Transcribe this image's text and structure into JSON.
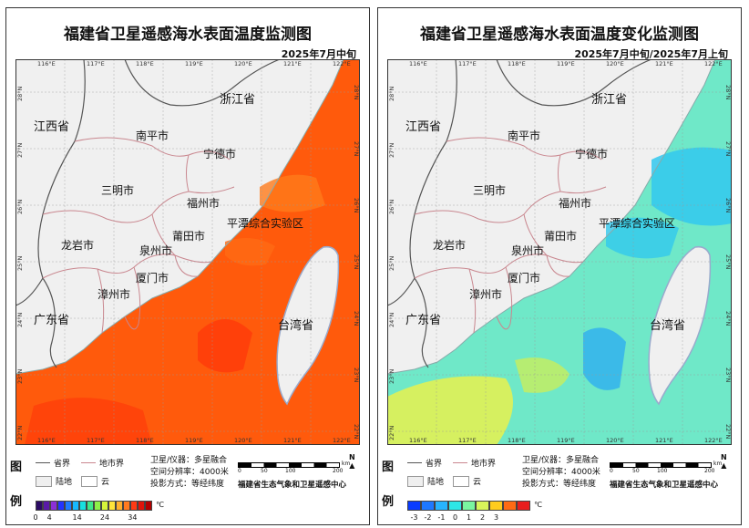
{
  "panels": [
    {
      "title": "福建省卫星遥感海水表面温度监测图",
      "date": "2025年7月中旬",
      "legend": {
        "legend_label_top": "图",
        "legend_label_bottom": "例",
        "province_boundary": "省界",
        "city_boundary": "地市界",
        "land": "陆地",
        "cloud": "云",
        "satellite": "卫星/仪器：多星融合",
        "resolution": "空间分辨率：4000米",
        "projection": "投影方式：等经纬度",
        "agency": "福建省生态气象和卫星遥感中心",
        "scale_unit": "km",
        "scale_ticks": [
          "0",
          "50",
          "100",
          "200"
        ],
        "north": "N",
        "colorbar_unit": "℃",
        "colorbar_labels": [
          "0",
          "4",
          "14",
          "24",
          "34"
        ],
        "colorbar_colors": [
          "#2b0a64",
          "#5a1aa8",
          "#8c2fd6",
          "#2233ff",
          "#1e7bff",
          "#16b8ff",
          "#17e0e0",
          "#3ee88a",
          "#8df048",
          "#d6f53a",
          "#ffe43a",
          "#ffb02e",
          "#ff7a1f",
          "#ff3a14",
          "#e0140a",
          "#b40000"
        ]
      }
    },
    {
      "title": "福建省卫星遥感海水表面温度变化监测图",
      "date": "2025年7月中旬/2025年7月上旬",
      "legend": {
        "legend_label_top": "图",
        "legend_label_bottom": "例",
        "province_boundary": "省界",
        "city_boundary": "地市界",
        "land": "陆地",
        "cloud": "云",
        "satellite": "卫星/仪器：多星融合",
        "resolution": "空间分辨率：4000米",
        "projection": "投影方式：等经纬度",
        "agency": "福建省生态气象和卫星遥感中心",
        "scale_unit": "km",
        "scale_ticks": [
          "0",
          "50",
          "100",
          "200"
        ],
        "north": "N",
        "colorbar_unit": "℃",
        "colorbar_labels": [
          "-3",
          "-2",
          "-1",
          "0",
          "1",
          "2",
          "3"
        ],
        "colorbar_colors": [
          "#0a3cff",
          "#1e78ff",
          "#27b4ff",
          "#2ee6e6",
          "#7af5a0",
          "#d8f55a",
          "#ffcc1e",
          "#ff6a14",
          "#e81e1e"
        ]
      }
    }
  ],
  "map": {
    "lon_ticks": [
      "116°E",
      "117°E",
      "118°E",
      "119°E",
      "120°E",
      "121°E",
      "122°E"
    ],
    "lat_ticks": [
      "28°N",
      "27°N",
      "26°N",
      "25°N",
      "24°N",
      "23°N",
      "22°N"
    ],
    "place_labels": [
      "浙江省",
      "江西省",
      "南平市",
      "宁德市",
      "三明市",
      "福州市",
      "平潭综合实验区",
      "龙岩市",
      "莆田市",
      "泉州市",
      "厦门市",
      "漳州市",
      "广东省",
      "台湾省"
    ]
  }
}
